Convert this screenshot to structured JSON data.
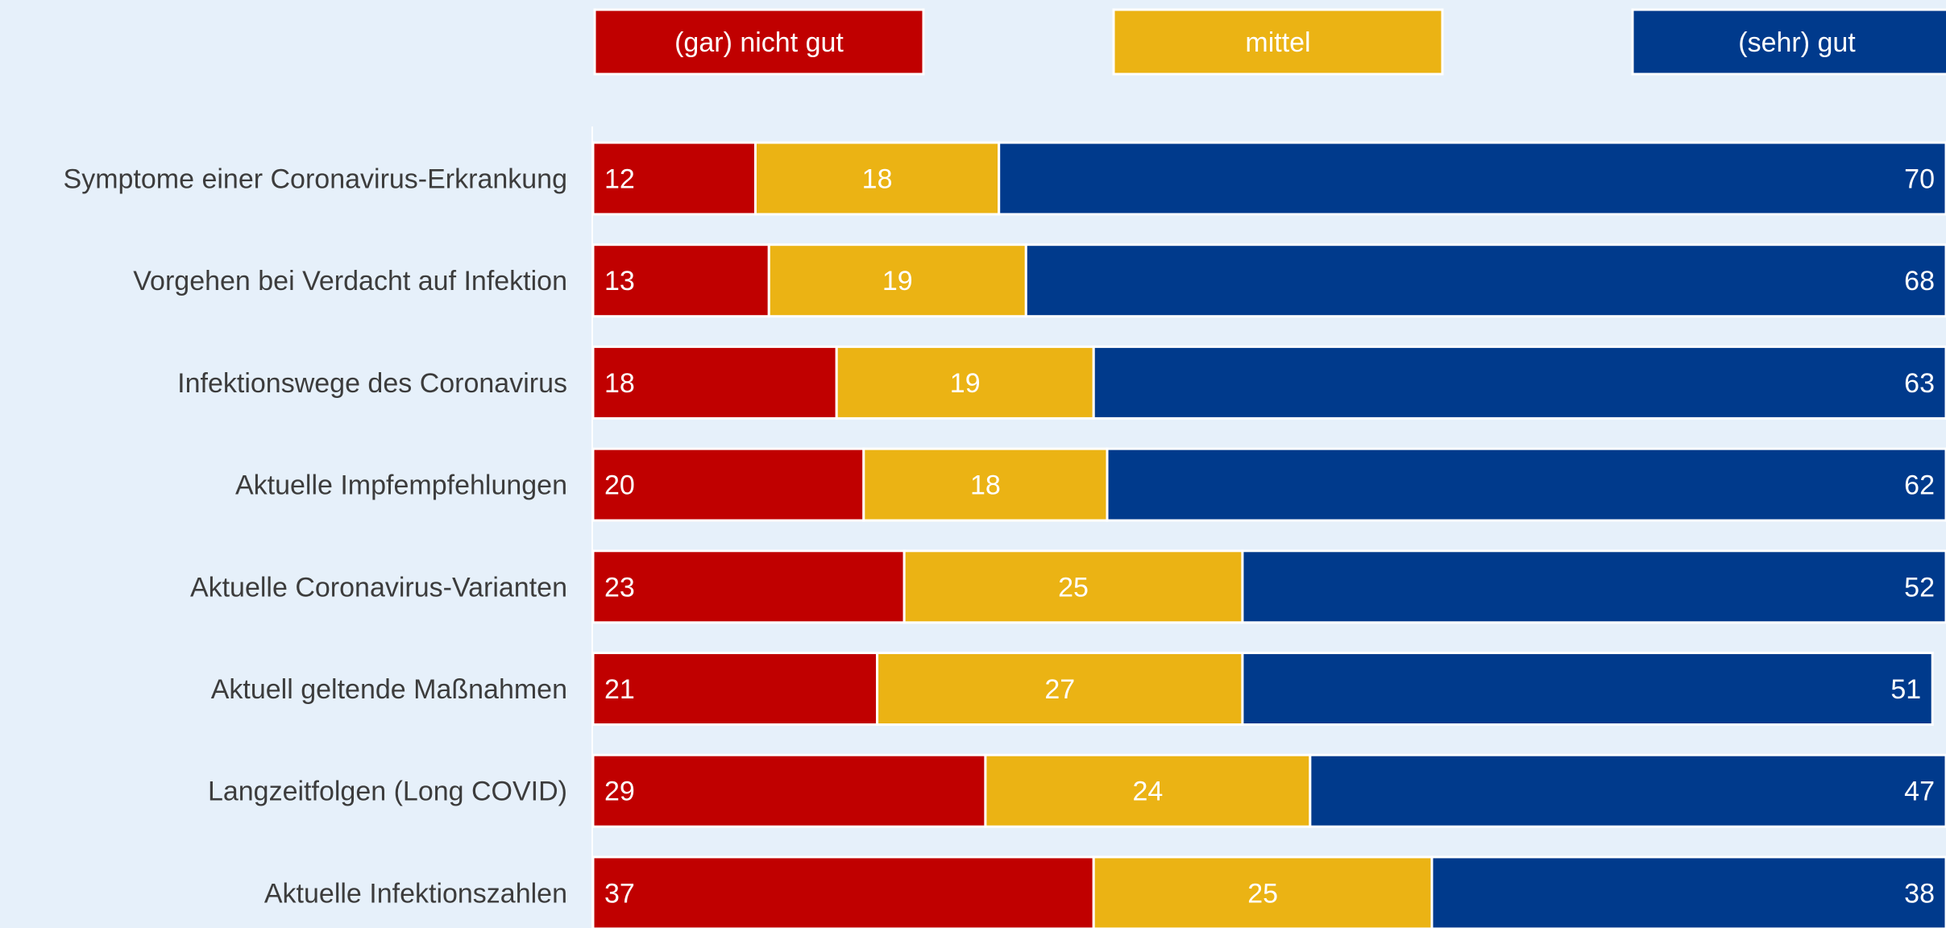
{
  "chart_data": {
    "type": "bar",
    "orientation": "horizontal",
    "stacked": true,
    "title": "",
    "xlabel": "",
    "ylabel": "",
    "xlim": [
      0,
      100
    ],
    "grid": false,
    "legend_position": "top",
    "categories": [
      "Symptome einer Coronavirus-Erkrankung",
      "Vorgehen bei Verdacht auf Infektion",
      "Infektionswege des Coronavirus",
      "Aktuelle Impfempfehlungen",
      "Aktuelle Coronavirus-Varianten",
      "Aktuell geltende Maßnahmen",
      "Langzeitfolgen (Long COVID)",
      "Aktuelle Infektionszahlen"
    ],
    "series": [
      {
        "name": "(gar) nicht gut",
        "color": "#c00000",
        "label_align": "start",
        "values": [
          12,
          13,
          18,
          20,
          23,
          21,
          29,
          37
        ]
      },
      {
        "name": "mittel",
        "color": "#ebb314",
        "label_align": "middle",
        "values": [
          18,
          19,
          19,
          18,
          25,
          27,
          24,
          25
        ]
      },
      {
        "name": "(sehr) gut",
        "color": "#003a8c",
        "label_align": "end",
        "values": [
          70,
          68,
          63,
          62,
          52,
          51,
          47,
          38
        ]
      }
    ],
    "colors": {
      "background": "#e6f0fa",
      "label_text": "#3c3c3c",
      "value_text": "#ffffff",
      "separator": "#ffffff",
      "axis_line": "#ffffff"
    }
  }
}
